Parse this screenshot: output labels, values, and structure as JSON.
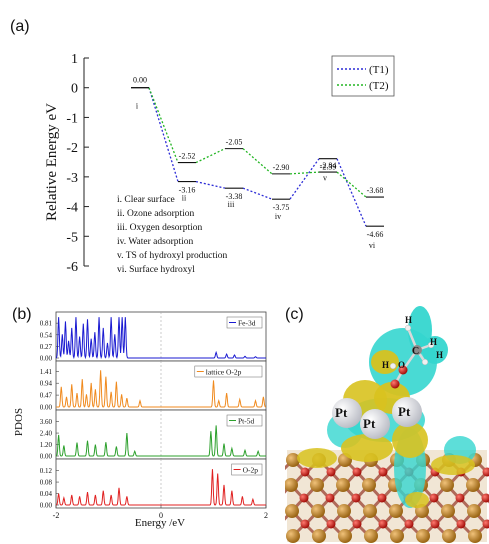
{
  "panels": {
    "a": "(a)",
    "b": "(b)",
    "c": "(c)"
  },
  "chart_data": [
    {
      "type": "line",
      "ylabel": "Relative Energy eV",
      "ylim": [
        -6,
        1
      ],
      "yticks": [
        1,
        0,
        -1,
        -2,
        -3,
        -4,
        -5,
        -6
      ],
      "states": [
        {
          "x": 1,
          "roman": "i"
        },
        {
          "x": 2,
          "roman": "ii"
        },
        {
          "x": 3,
          "roman": "iii"
        },
        {
          "x": 4,
          "roman": "iv"
        },
        {
          "x": 5,
          "roman": "v"
        },
        {
          "x": 6,
          "roman": "vi"
        }
      ],
      "series": [
        {
          "name": "(T1)",
          "color": "#2b2bd6",
          "values": [
            0.0,
            -3.16,
            -3.38,
            -3.75,
            -2.39,
            -4.66
          ]
        },
        {
          "name": "(T2)",
          "color": "#22b522",
          "values": [
            0.0,
            -2.52,
            -2.05,
            -2.9,
            -2.84,
            -3.68
          ]
        }
      ],
      "point_labels": {
        "T1": [
          "0.00",
          "-3.16",
          "-3.38",
          "-3.75",
          "-2.39",
          "-4.66"
        ],
        "T2": [
          "",
          "-2.52",
          "-2.05",
          "-2.90",
          "-2.84",
          "-3.68"
        ]
      },
      "descriptions": [
        "i. Clear surface",
        "ii. Ozone adsorption",
        "iii. Oxygen desorption",
        "iv. Water adsorption",
        "v. TS of hydroxyl production",
        "vi. Surface hydroxyl"
      ],
      "legend_position": "top-right"
    },
    {
      "type": "line",
      "ylabel": "PDOS",
      "xlabel": "Energy /eV",
      "xlim": [
        -2,
        2
      ],
      "xticks": [
        "-2",
        "0",
        "2"
      ],
      "subplots": [
        {
          "name": "Fe-3d",
          "color": "#1a1ad1",
          "yticks": [
            "0.81",
            "0.54",
            "0.27",
            "0.00"
          ],
          "ymax": 1.0
        },
        {
          "name": "lattice O-2p",
          "color": "#f08a1e",
          "yticks": [
            "1.41",
            "0.94",
            "0.47",
            "0.00"
          ],
          "ymax": 1.7
        },
        {
          "name": "Pt-5d",
          "color": "#2ca02c",
          "yticks": [
            "3.60",
            "2.40",
            "1.20",
            "0.00"
          ],
          "ymax": 4.5
        },
        {
          "name": "O-2p",
          "color": "#e02020",
          "yticks": [
            "0.12",
            "0.08",
            "0.04",
            "0.00"
          ],
          "ymax": 0.15
        }
      ],
      "peaks": [
        [
          [
            -1.95,
            0.95
          ],
          [
            -1.88,
            0.55
          ],
          [
            -1.82,
            0.85
          ],
          [
            -1.76,
            0.4
          ],
          [
            -1.7,
            0.7
          ],
          [
            -1.62,
            0.95
          ],
          [
            -1.55,
            0.5
          ],
          [
            -1.48,
            0.8
          ],
          [
            -1.4,
            0.9
          ],
          [
            -1.33,
            0.45
          ],
          [
            -1.26,
            0.6
          ],
          [
            -1.18,
            0.95
          ],
          [
            -1.1,
            0.7
          ],
          [
            -1.02,
            0.35
          ],
          [
            -0.95,
            0.95
          ],
          [
            -0.88,
            0.55
          ],
          [
            -0.8,
            0.95
          ],
          [
            -0.74,
            0.95
          ],
          [
            -0.68,
            0.95
          ],
          [
            1.05,
            0.13
          ],
          [
            1.25,
            0.09
          ],
          [
            1.4,
            0.07
          ],
          [
            1.6,
            0.04
          ],
          [
            1.8,
            0.03
          ]
        ],
        [
          [
            -1.9,
            0.8
          ],
          [
            -1.8,
            0.4
          ],
          [
            -1.7,
            0.9
          ],
          [
            -1.6,
            0.55
          ],
          [
            -1.5,
            1.1
          ],
          [
            -1.42,
            0.5
          ],
          [
            -1.33,
            0.95
          ],
          [
            -1.25,
            0.7
          ],
          [
            -1.15,
            1.45
          ],
          [
            -1.05,
            1.2
          ],
          [
            -0.95,
            0.6
          ],
          [
            -0.85,
            1.0
          ],
          [
            -0.75,
            0.5
          ],
          [
            -0.65,
            0.35
          ],
          [
            -0.4,
            0.25
          ],
          [
            1.0,
            1.05
          ],
          [
            1.1,
            0.25
          ],
          [
            1.25,
            0.55
          ],
          [
            1.5,
            0.3
          ],
          [
            1.8,
            0.25
          ],
          [
            1.95,
            0.4
          ]
        ],
        [
          [
            -1.95,
            2.2
          ],
          [
            -1.85,
            1.1
          ],
          [
            -1.6,
            1.4
          ],
          [
            -1.4,
            1.6
          ],
          [
            -1.25,
            1.2
          ],
          [
            -1.05,
            1.45
          ],
          [
            -0.85,
            1.0
          ],
          [
            -0.65,
            2.4
          ],
          [
            -0.5,
            0.5
          ],
          [
            0.95,
            2.6
          ],
          [
            1.05,
            3.2
          ],
          [
            1.2,
            1.3
          ],
          [
            1.35,
            0.8
          ],
          [
            1.6,
            0.6
          ],
          [
            1.85,
            0.5
          ]
        ],
        [
          [
            -1.95,
            0.04
          ],
          [
            -1.85,
            0.025
          ],
          [
            -1.7,
            0.035
          ],
          [
            -1.55,
            0.03
          ],
          [
            -1.4,
            0.045
          ],
          [
            -1.25,
            0.035
          ],
          [
            -1.1,
            0.05
          ],
          [
            -0.95,
            0.035
          ],
          [
            -0.8,
            0.06
          ],
          [
            -0.65,
            0.03
          ],
          [
            0.98,
            0.125
          ],
          [
            1.08,
            0.11
          ],
          [
            1.2,
            0.07
          ],
          [
            1.35,
            0.05
          ],
          [
            1.55,
            0.03
          ],
          [
            1.75,
            0.02
          ]
        ]
      ]
    }
  ],
  "structure": {
    "atom_labels": [
      "H",
      "H",
      "H",
      "C",
      "H",
      "O",
      "Pt",
      "Pt",
      "Pt"
    ]
  }
}
